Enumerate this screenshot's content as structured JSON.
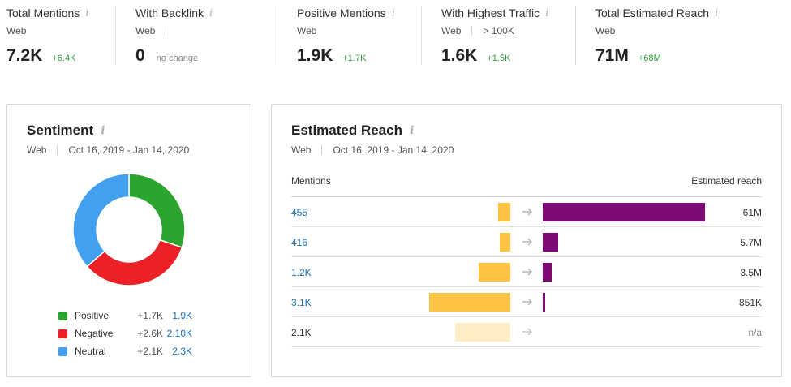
{
  "metrics": [
    {
      "title": "Total Mentions",
      "sub1": "Web",
      "sub2": "",
      "value": "7.2K",
      "delta": "+6.4K"
    },
    {
      "title": "With Backlink",
      "sub1": "Web",
      "sub2": "",
      "value": "0",
      "delta": "no change"
    },
    {
      "title": "Positive Mentions",
      "sub1": "Web",
      "sub2": "",
      "value": "1.9K",
      "delta": "+1.7K"
    },
    {
      "title": "With Highest Traffic",
      "sub1": "Web",
      "sub2": "> 100K",
      "value": "1.6K",
      "delta": "+1.5K"
    },
    {
      "title": "Total Estimated Reach",
      "sub1": "Web",
      "sub2": "",
      "value": "71M",
      "delta": "+68M"
    }
  ],
  "info_icon_glyph": "i",
  "sentiment": {
    "title": "Sentiment",
    "source": "Web",
    "date_range": "Oct 16, 2019 - Jan 14, 2020",
    "legend": [
      {
        "label": "Positive",
        "delta": "+1.7K",
        "value": "1.9K",
        "color": "#2ca52f"
      },
      {
        "label": "Negative",
        "delta": "+2.6K",
        "value": "2.10K",
        "color": "#ec2127"
      },
      {
        "label": "Neutral",
        "delta": "+2.1K",
        "value": "2.3K",
        "color": "#42a0ef"
      }
    ]
  },
  "chart_data": {
    "type": "pie",
    "title": "Sentiment",
    "donut": true,
    "categories": [
      "Positive",
      "Negative",
      "Neutral"
    ],
    "values": [
      1.9,
      2.1,
      2.3
    ],
    "unit": "K mentions",
    "colors": [
      "#2ca52f",
      "#ec2127",
      "#42a0ef"
    ]
  },
  "reach": {
    "title": "Estimated Reach",
    "source": "Web",
    "date_range": "Oct 16, 2019 - Jan 14, 2020",
    "col_mentions": "Mentions",
    "col_reach": "Estimated reach",
    "max_mentions": 3100,
    "max_reach": 61000000,
    "rows": [
      {
        "mentions_label": "455",
        "mentions": 455,
        "reach_label": "61M",
        "reach": 61000000,
        "linked": true,
        "faded": false
      },
      {
        "mentions_label": "416",
        "mentions": 416,
        "reach_label": "5.7M",
        "reach": 5700000,
        "linked": true,
        "faded": false
      },
      {
        "mentions_label": "1.2K",
        "mentions": 1200,
        "reach_label": "3.5M",
        "reach": 3500000,
        "linked": true,
        "faded": false
      },
      {
        "mentions_label": "3.1K",
        "mentions": 3100,
        "reach_label": "851K",
        "reach": 851000,
        "linked": true,
        "faded": false
      },
      {
        "mentions_label": "2.1K",
        "mentions": 2100,
        "reach_label": "n/a",
        "reach": null,
        "linked": false,
        "faded": true
      }
    ]
  }
}
